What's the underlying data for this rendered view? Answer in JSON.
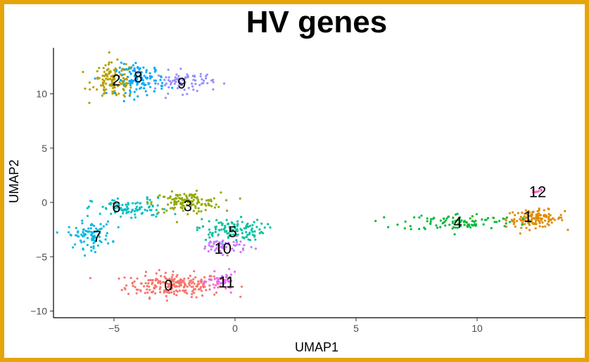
{
  "chart_data": {
    "type": "scatter",
    "title": "HV genes",
    "xlabel": "UMAP1",
    "ylabel": "UMAP2",
    "xlim": [
      -7.5,
      14
    ],
    "ylim": [
      -10.5,
      14
    ],
    "xticks": [
      -5,
      0,
      5,
      10
    ],
    "yticks": [
      -10,
      -5,
      0,
      5,
      10
    ],
    "xtick_labels": [
      "−5",
      "0",
      "5",
      "10"
    ],
    "ytick_labels": [
      "−10",
      "−5",
      "0",
      "5",
      "10"
    ],
    "grid": false,
    "legend": "none",
    "clusters": [
      {
        "label": "0",
        "color": "#F8766D",
        "center": [
          -2.5,
          -7.6
        ],
        "spread": [
          1.0,
          0.55
        ],
        "n": 230,
        "label_pos": [
          -2.75,
          -7.6
        ]
      },
      {
        "label": "1",
        "color": "#DE8C00",
        "center": [
          12.4,
          -1.5
        ],
        "spread": [
          0.6,
          0.4
        ],
        "n": 130,
        "label_pos": [
          12.1,
          -1.3
        ]
      },
      {
        "label": "2",
        "color": "#B79F00",
        "center": [
          -5.0,
          11.2
        ],
        "spread": [
          0.45,
          0.8
        ],
        "n": 130,
        "label_pos": [
          -4.9,
          11.3
        ]
      },
      {
        "label": "3",
        "color": "#93AA00",
        "center": [
          -2.0,
          0.0
        ],
        "spread": [
          0.7,
          0.45
        ],
        "n": 130,
        "label_pos": [
          -1.95,
          -0.3
        ]
      },
      {
        "label": "4",
        "color": "#00BA38",
        "center": [
          9.3,
          -1.8
        ],
        "spread": [
          1.2,
          0.4
        ],
        "n": 100,
        "label_pos": [
          9.2,
          -1.8
        ]
      },
      {
        "label": "5",
        "color": "#00C19F",
        "center": [
          -0.2,
          -2.5
        ],
        "spread": [
          0.7,
          0.5
        ],
        "n": 110,
        "label_pos": [
          -0.1,
          -2.7
        ]
      },
      {
        "label": "6",
        "color": "#00BFC4",
        "center": [
          -4.3,
          -0.6
        ],
        "spread": [
          0.8,
          0.5
        ],
        "n": 90,
        "label_pos": [
          -4.9,
          -0.4
        ]
      },
      {
        "label": "7",
        "color": "#00B9E3",
        "center": [
          -6.0,
          -3.0
        ],
        "spread": [
          0.45,
          0.6
        ],
        "n": 90,
        "label_pos": [
          -5.7,
          -3.1
        ]
      },
      {
        "label": "8",
        "color": "#00A9FF",
        "center": [
          -3.9,
          11.3
        ],
        "spread": [
          0.5,
          0.7
        ],
        "n": 110,
        "label_pos": [
          -4.0,
          11.6
        ]
      },
      {
        "label": "9",
        "color": "#9590FF",
        "center": [
          -2.1,
          11.1
        ],
        "spread": [
          0.6,
          0.5
        ],
        "n": 80,
        "label_pos": [
          -2.2,
          11.0
        ]
      },
      {
        "label": "10",
        "color": "#C77CFF",
        "center": [
          -0.5,
          -4.0
        ],
        "spread": [
          0.5,
          0.35
        ],
        "n": 60,
        "label_pos": [
          -0.5,
          -4.2
        ]
      },
      {
        "label": "11",
        "color": "#E76BF3",
        "center": [
          -0.5,
          -7.3
        ],
        "spread": [
          0.3,
          0.4
        ],
        "n": 45,
        "label_pos": [
          -0.35,
          -7.3
        ]
      },
      {
        "label": "12",
        "color": "#FF62BC",
        "center": [
          12.4,
          1.0
        ],
        "spread": [
          0.15,
          0.1
        ],
        "n": 10,
        "label_pos": [
          12.5,
          1.0
        ]
      }
    ]
  }
}
